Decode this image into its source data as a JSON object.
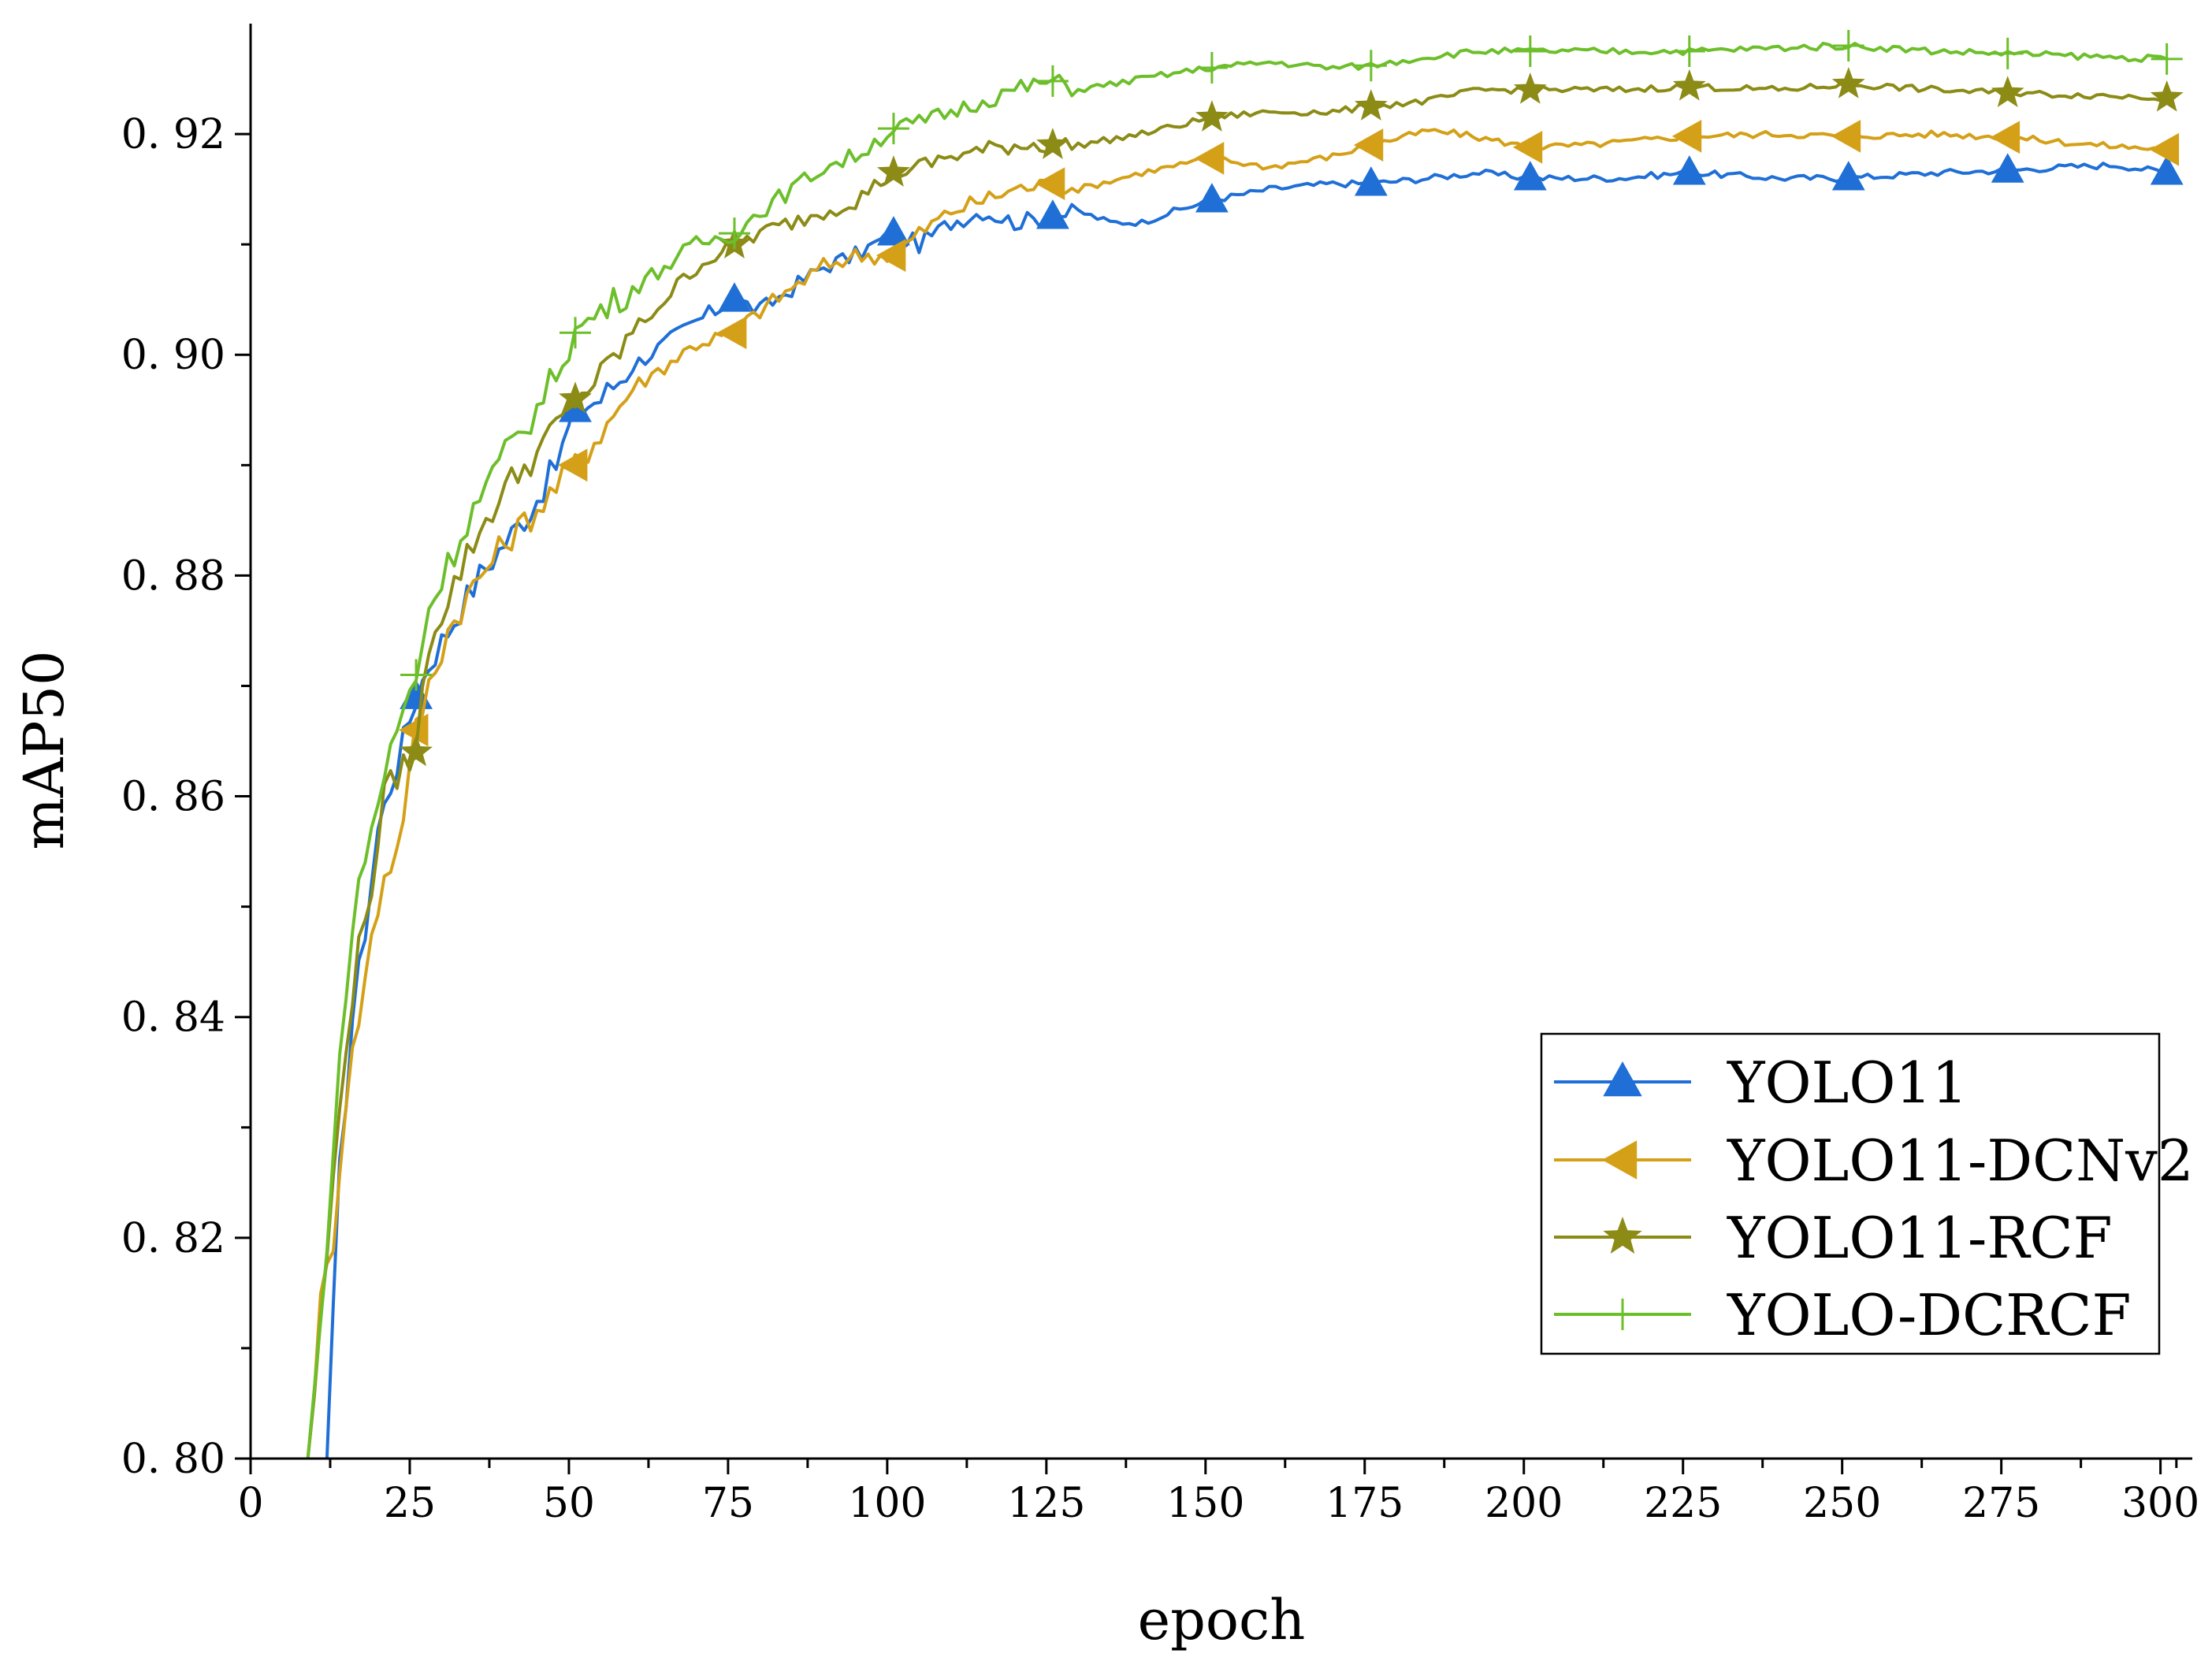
{
  "chart_data": {
    "type": "line",
    "title": "",
    "xlabel": "epoch",
    "ylabel": "mAP50",
    "xlim": [
      0,
      305
    ],
    "ylim": [
      0.8,
      0.93
    ],
    "x_ticks": [
      0,
      25,
      50,
      75,
      100,
      125,
      150,
      175,
      200,
      225,
      250,
      275,
      300
    ],
    "x_tick_labels": [
      "0",
      "25",
      "50",
      "75",
      "100",
      "125",
      "150",
      "175",
      "200",
      "225",
      "250",
      "275",
      "300"
    ],
    "y_ticks": [
      0.8,
      0.82,
      0.84,
      0.86,
      0.88,
      0.9,
      0.92
    ],
    "y_tick_labels": [
      "0. 80",
      "0. 82",
      "0. 84",
      "0. 86",
      "0. 88",
      "0. 90",
      "0. 92"
    ],
    "legend_position": "bottom-right",
    "grid": false,
    "series": [
      {
        "name": "YOLO11",
        "color": "#1f6fd6",
        "marker": "triangle-up",
        "start_epoch": 12,
        "marker_epochs": [
          26,
          51,
          76,
          101,
          126,
          151,
          176,
          201,
          226,
          251,
          276,
          301
        ],
        "x": [
          12,
          14,
          16,
          18,
          20,
          22,
          24,
          26,
          28,
          30,
          33,
          36,
          40,
          44,
          48,
          51,
          55,
          60,
          65,
          70,
          76,
          80,
          85,
          90,
          95,
          101,
          105,
          110,
          115,
          120,
          126,
          130,
          135,
          140,
          145,
          151,
          160,
          170,
          176,
          185,
          193,
          201,
          215,
          226,
          240,
          251,
          265,
          276,
          285,
          293,
          301
        ],
        "values": [
          0.8,
          0.826,
          0.84,
          0.848,
          0.857,
          0.861,
          0.865,
          0.869,
          0.872,
          0.874,
          0.877,
          0.88,
          0.883,
          0.886,
          0.89,
          0.895,
          0.896,
          0.899,
          0.901,
          0.903,
          0.905,
          0.904,
          0.906,
          0.908,
          0.909,
          0.911,
          0.91,
          0.912,
          0.913,
          0.912,
          0.9125,
          0.913,
          0.912,
          0.912,
          0.913,
          0.914,
          0.915,
          0.9155,
          0.9155,
          0.916,
          0.9165,
          0.916,
          0.916,
          0.9165,
          0.916,
          0.916,
          0.9165,
          0.9167,
          0.917,
          0.9172,
          0.9165
        ]
      },
      {
        "name": "YOLO11-DCNv2",
        "color": "#d4a017",
        "marker": "triangle-left",
        "start_epoch": 9,
        "marker_epochs": [
          26,
          51,
          76,
          101,
          126,
          151,
          176,
          201,
          226,
          251,
          276,
          301
        ],
        "x": [
          9,
          11,
          13,
          15,
          17,
          19,
          21,
          23,
          26,
          28,
          31,
          35,
          40,
          45,
          51,
          55,
          60,
          65,
          70,
          76,
          80,
          85,
          90,
          95,
          101,
          105,
          110,
          115,
          120,
          126,
          130,
          140,
          151,
          160,
          170,
          176,
          185,
          190,
          201,
          210,
          226,
          240,
          251,
          265,
          276,
          290,
          301
        ],
        "values": [
          0.8,
          0.814,
          0.82,
          0.833,
          0.84,
          0.847,
          0.853,
          0.855,
          0.866,
          0.87,
          0.875,
          0.879,
          0.883,
          0.886,
          0.89,
          0.893,
          0.897,
          0.899,
          0.901,
          0.902,
          0.904,
          0.906,
          0.908,
          0.909,
          0.909,
          0.911,
          0.913,
          0.914,
          0.915,
          0.9155,
          0.915,
          0.9165,
          0.9178,
          0.917,
          0.918,
          0.919,
          0.9203,
          0.92,
          0.9188,
          0.919,
          0.9198,
          0.92,
          0.9198,
          0.92,
          0.9197,
          0.919,
          0.9186
        ]
      },
      {
        "name": "YOLO11-RCF",
        "color": "#8b8b16",
        "marker": "star",
        "start_epoch": 9,
        "marker_epochs": [
          26,
          51,
          76,
          101,
          126,
          151,
          176,
          201,
          226,
          251,
          276,
          301
        ],
        "x": [
          9,
          11,
          13,
          15,
          17,
          19,
          21,
          23,
          26,
          28,
          31,
          35,
          40,
          45,
          51,
          55,
          60,
          65,
          70,
          76,
          80,
          85,
          90,
          95,
          101,
          105,
          110,
          115,
          120,
          126,
          130,
          140,
          151,
          160,
          170,
          176,
          185,
          193,
          201,
          215,
          226,
          240,
          251,
          265,
          276,
          290,
          301
        ],
        "values": [
          0.8,
          0.812,
          0.825,
          0.838,
          0.846,
          0.852,
          0.86,
          0.862,
          0.864,
          0.874,
          0.878,
          0.883,
          0.888,
          0.891,
          0.896,
          0.898,
          0.902,
          0.905,
          0.908,
          0.91,
          0.911,
          0.912,
          0.913,
          0.914,
          0.9165,
          0.917,
          0.918,
          0.9185,
          0.919,
          0.919,
          0.919,
          0.92,
          0.9215,
          0.922,
          0.922,
          0.9225,
          0.923,
          0.924,
          0.924,
          0.924,
          0.9243,
          0.924,
          0.9245,
          0.924,
          0.9237,
          0.9235,
          0.9233
        ]
      },
      {
        "name": "YOLO-DCRCF",
        "color": "#6cbf2a",
        "marker": "plus",
        "start_epoch": 9,
        "marker_epochs": [
          26,
          51,
          76,
          101,
          126,
          151,
          176,
          201,
          226,
          251,
          276,
          301
        ],
        "x": [
          9,
          11,
          13,
          15,
          17,
          19,
          21,
          23,
          26,
          28,
          31,
          35,
          40,
          45,
          51,
          55,
          60,
          65,
          70,
          76,
          80,
          85,
          90,
          95,
          101,
          105,
          110,
          115,
          120,
          126,
          130,
          135,
          140,
          145,
          151,
          160,
          170,
          176,
          185,
          193,
          201,
          215,
          226,
          240,
          251,
          265,
          276,
          290,
          301
        ],
        "values": [
          0.8,
          0.812,
          0.828,
          0.843,
          0.852,
          0.857,
          0.862,
          0.866,
          0.871,
          0.877,
          0.881,
          0.886,
          0.891,
          0.895,
          0.902,
          0.904,
          0.906,
          0.908,
          0.91,
          0.911,
          0.913,
          0.915,
          0.917,
          0.918,
          0.9205,
          0.921,
          0.922,
          0.923,
          0.924,
          0.9248,
          0.924,
          0.9245,
          0.925,
          0.9255,
          0.926,
          0.9265,
          0.926,
          0.9262,
          0.927,
          0.9275,
          0.9275,
          0.9275,
          0.9275,
          0.9278,
          0.928,
          0.9275,
          0.9273,
          0.927,
          0.9268
        ]
      }
    ]
  }
}
